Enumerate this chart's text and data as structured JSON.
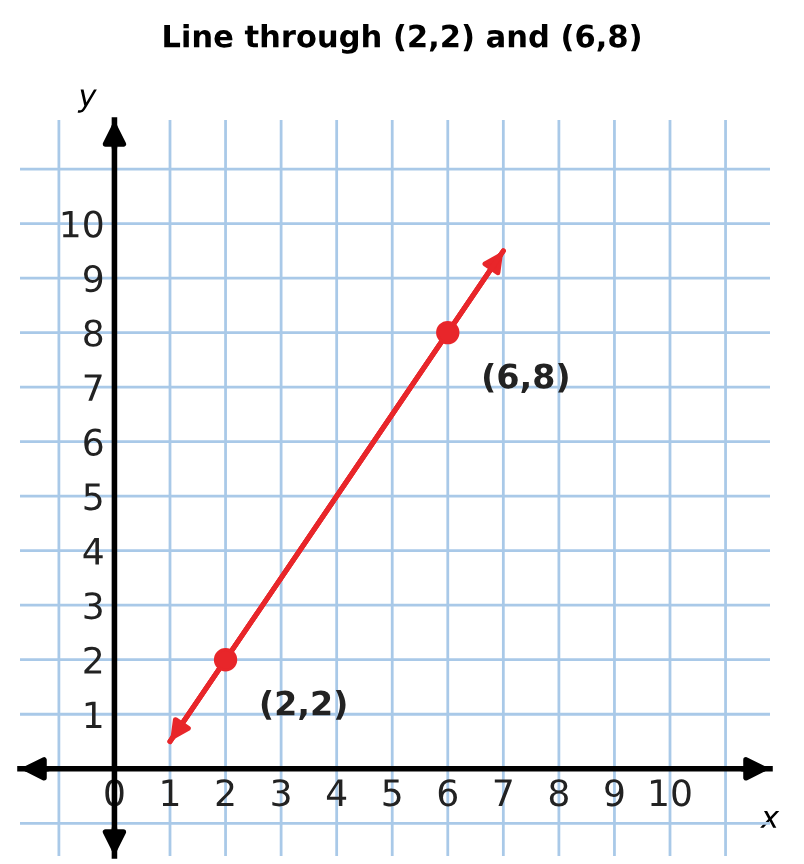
{
  "chart_data": {
    "type": "line",
    "title": "Line through (2,2) and (6,8)",
    "xlabel": "x",
    "ylabel": "y",
    "xlim": [
      -1.7,
      11.8
    ],
    "ylim": [
      -1.6,
      11.9
    ],
    "xticks": [
      {
        "value": -1,
        "label": null
      },
      {
        "value": 0,
        "label": "0"
      },
      1,
      2,
      3,
      4,
      5,
      6,
      7,
      8,
      9,
      10,
      {
        "value": 11,
        "label": null
      }
    ],
    "yticks": [
      {
        "value": -1,
        "label": null
      },
      {
        "value": 0,
        "label": null
      },
      1,
      2,
      3,
      4,
      5,
      6,
      7,
      8,
      9,
      10,
      {
        "value": 11,
        "label": null
      }
    ],
    "grid": true,
    "series": [
      {
        "color": "#e8262a",
        "x": [
          1,
          7
        ],
        "values": [
          0.5,
          9.5
        ]
      },
      {
        "type": "scatter",
        "color": "#e8262a",
        "x": [
          2,
          6
        ],
        "values": [
          2,
          8
        ]
      }
    ],
    "annotations": [
      {
        "text": "(2,2)",
        "x": 2,
        "y": 2
      },
      {
        "text": "(6,8)",
        "x": 6,
        "y": 8
      }
    ]
  }
}
